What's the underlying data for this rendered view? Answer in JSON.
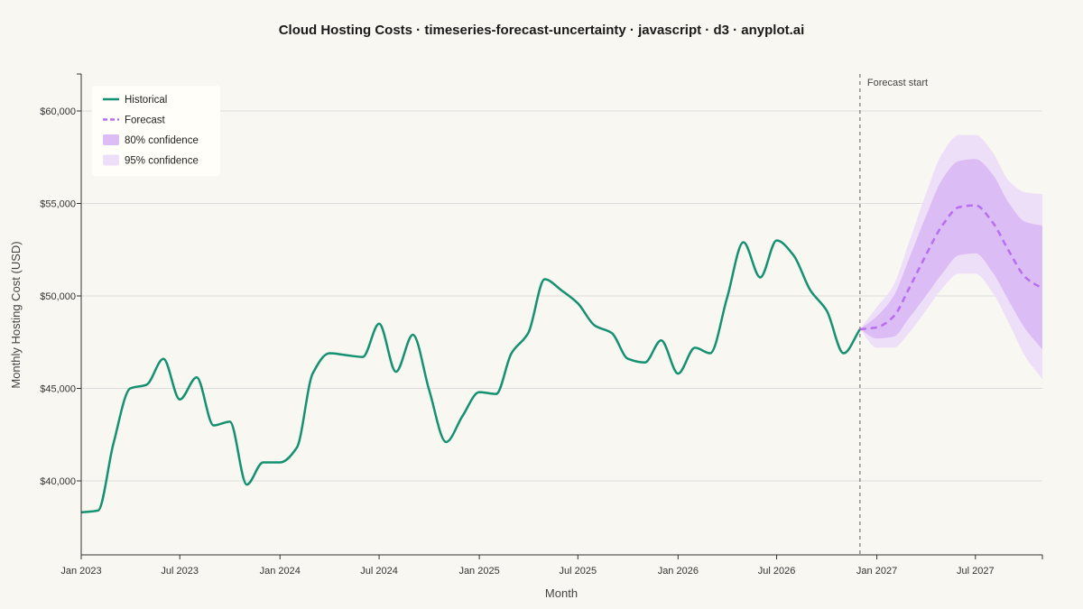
{
  "chart_data": {
    "type": "line",
    "title": "Cloud Hosting Costs · timeseries-forecast-uncertainty · javascript · d3 · anyplot.ai",
    "xlabel": "Month",
    "ylabel": "Monthly Hosting Cost (USD)",
    "xlim": [
      "2023-01-01",
      "2027-11-01"
    ],
    "ylim": [
      36000,
      62000
    ],
    "x_ticks": [
      "Jan 2023",
      "Jul 2023",
      "Jan 2024",
      "Jul 2024",
      "Jan 2025",
      "Jul 2025",
      "Jan 2026",
      "Jul 2026",
      "Jan 2027",
      "Jul 2027"
    ],
    "y_ticks": [
      {
        "value": 40000,
        "label": "$40,000"
      },
      {
        "value": 45000,
        "label": "$45,000"
      },
      {
        "value": 50000,
        "label": "$50,000"
      },
      {
        "value": 55000,
        "label": "$55,000"
      },
      {
        "value": 60000,
        "label": "$60,000"
      }
    ],
    "grid": "horizontal",
    "legend_position": "top-left",
    "legend": [
      {
        "label": "Historical",
        "kind": "line"
      },
      {
        "label": "Forecast",
        "kind": "dashed"
      },
      {
        "label": "80% confidence",
        "kind": "band80"
      },
      {
        "label": "95% confidence",
        "kind": "band95"
      }
    ],
    "annotation": {
      "label": "Forecast start",
      "x": "2026-12-01"
    },
    "colors": {
      "historical": "#149170",
      "forecast": "#b86ef0",
      "band80": "#dcbcf5",
      "band95": "#eedff8",
      "grid": "#dddddd",
      "axis": "#333333",
      "background": "#f9f7f1"
    },
    "series": [
      {
        "name": "Historical",
        "x": [
          "2023-01",
          "2023-02",
          "2023-03",
          "2023-04",
          "2023-05",
          "2023-06",
          "2023-07",
          "2023-08",
          "2023-09",
          "2023-10",
          "2023-11",
          "2023-12",
          "2024-01",
          "2024-02",
          "2024-03",
          "2024-04",
          "2024-05",
          "2024-06",
          "2024-07",
          "2024-08",
          "2024-09",
          "2024-10",
          "2024-11",
          "2024-12",
          "2025-01",
          "2025-02",
          "2025-03",
          "2025-04",
          "2025-05",
          "2025-06",
          "2025-07",
          "2025-08",
          "2025-09",
          "2025-10",
          "2025-11",
          "2025-12",
          "2026-01",
          "2026-02",
          "2026-03",
          "2026-04",
          "2026-05",
          "2026-06",
          "2026-07",
          "2026-08",
          "2026-09",
          "2026-10",
          "2026-11",
          "2026-12"
        ],
        "y": [
          38300,
          38400,
          42000,
          45000,
          45200,
          46600,
          44400,
          45600,
          43000,
          43200,
          39800,
          41000,
          41000,
          41800,
          45800,
          46900,
          46800,
          46700,
          48500,
          45900,
          47900,
          44900,
          42100,
          43500,
          44800,
          44700,
          46900,
          48000,
          50900,
          50300,
          49600,
          48400,
          48000,
          46600,
          46400,
          47600,
          45800,
          47200,
          46900,
          49900,
          52900,
          51000,
          53000,
          52200,
          50300,
          49200,
          46900,
          48200
        ]
      },
      {
        "name": "Forecast",
        "x": [
          "2026-12",
          "2027-01",
          "2027-02",
          "2027-03",
          "2027-04",
          "2027-05",
          "2027-06",
          "2027-07",
          "2027-08",
          "2027-09",
          "2027-10",
          "2027-11"
        ],
        "y": [
          48200,
          48300,
          48900,
          50400,
          52200,
          53800,
          54800,
          54900,
          54000,
          52400,
          51000,
          50400
        ],
        "lower80": [
          48200,
          47700,
          47800,
          48800,
          50000,
          51200,
          52200,
          52300,
          51300,
          49700,
          48200,
          47100
        ],
        "upper80": [
          48200,
          48900,
          50000,
          52000,
          54300,
          56300,
          57300,
          57400,
          56600,
          55000,
          54000,
          53800
        ],
        "lower95": [
          48200,
          47200,
          47200,
          48000,
          49200,
          50400,
          51200,
          51200,
          50200,
          48500,
          46700,
          45500
        ],
        "upper95": [
          48200,
          49400,
          50600,
          52900,
          55500,
          57700,
          58700,
          58700,
          57800,
          56200,
          55600,
          55500
        ]
      }
    ]
  }
}
